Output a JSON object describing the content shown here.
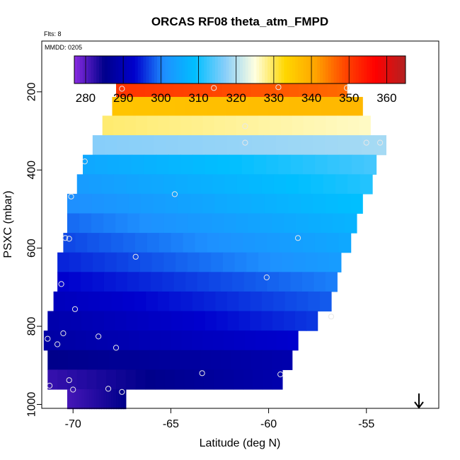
{
  "chart_data": {
    "type": "heatmap",
    "title": "ORCAS RF08 theta_atm_FMPD",
    "annotations": {
      "flights": "Flts: 8",
      "date": "MMDD: 0205"
    },
    "xlabel": "Latitude (deg N)",
    "ylabel": "PSXC (mbar)",
    "xlim": [
      -71.6,
      -51.3
    ],
    "ylim": [
      1010,
      70
    ],
    "x_ticks": [
      -70,
      -65,
      -60,
      -55
    ],
    "y_ticks": [
      200,
      400,
      600,
      800,
      1000
    ],
    "colorbar": {
      "range": [
        277,
        365
      ],
      "ticks": [
        280,
        290,
        300,
        310,
        320,
        330,
        340,
        350,
        360
      ],
      "colors": [
        "#8a2be2",
        "#00008b",
        "#0000cd",
        "#1e90ff",
        "#00bfff",
        "#87cefa",
        "#ffffe0",
        "#ffd700",
        "#ffa500",
        "#ff4500",
        "#ff0000",
        "#b22222"
      ]
    },
    "flight_direction_arrow": "down",
    "rows": [
      {
        "p": 188,
        "lat_min": -67.8,
        "lat_max": -56.0,
        "value_min": 351,
        "value_max": 346
      },
      {
        "p": 238,
        "lat_min": -68.0,
        "lat_max": -55.2,
        "value_min": 336,
        "value_max": 338
      },
      {
        "p": 286,
        "lat_min": -68.5,
        "lat_max": -54.8,
        "value_min": 329,
        "value_max": 326
      },
      {
        "p": 336,
        "lat_min": -69.0,
        "lat_max": -54.0,
        "value_min": 317,
        "value_max": 319
      },
      {
        "p": 386,
        "lat_min": -69.5,
        "lat_max": -54.5,
        "value_min": 305,
        "value_max": 313
      },
      {
        "p": 436,
        "lat_min": -69.8,
        "lat_max": -54.7,
        "value_min": 303,
        "value_max": 311
      },
      {
        "p": 486,
        "lat_min": -70.3,
        "lat_max": -55.2,
        "value_min": 301,
        "value_max": 309
      },
      {
        "p": 536,
        "lat_min": -70.3,
        "lat_max": -55.5,
        "value_min": 299,
        "value_max": 307
      },
      {
        "p": 586,
        "lat_min": -70.5,
        "lat_max": -55.8,
        "value_min": 297,
        "value_max": 305
      },
      {
        "p": 636,
        "lat_min": -70.8,
        "lat_max": -56.3,
        "value_min": 295,
        "value_max": 303
      },
      {
        "p": 686,
        "lat_min": -70.8,
        "lat_max": -56.5,
        "value_min": 293,
        "value_max": 300
      },
      {
        "p": 736,
        "lat_min": -71.0,
        "lat_max": -56.8,
        "value_min": 291,
        "value_max": 298
      },
      {
        "p": 786,
        "lat_min": -71.3,
        "lat_max": -57.5,
        "value_min": 289,
        "value_max": 296
      },
      {
        "p": 836,
        "lat_min": -71.5,
        "lat_max": -58.5,
        "value_min": 288,
        "value_max": 293
      },
      {
        "p": 886,
        "lat_min": -71.3,
        "lat_max": -58.8,
        "value_min": 285,
        "value_max": 289
      },
      {
        "p": 936,
        "lat_min": -71.3,
        "lat_max": -59.3,
        "value_min": 282,
        "value_max": 289
      },
      {
        "p": 986,
        "lat_min": -70.3,
        "lat_max": -67.3,
        "value_min": 281,
        "value_max": 285
      }
    ],
    "points": [
      {
        "lat": -67.5,
        "p": 192
      },
      {
        "lat": -62.8,
        "p": 190
      },
      {
        "lat": -59.5,
        "p": 188
      },
      {
        "lat": -56.0,
        "p": 190
      },
      {
        "lat": -61.2,
        "p": 288
      },
      {
        "lat": -61.2,
        "p": 330
      },
      {
        "lat": -55.0,
        "p": 330
      },
      {
        "lat": -54.3,
        "p": 330
      },
      {
        "lat": -69.4,
        "p": 378
      },
      {
        "lat": -64.8,
        "p": 462
      },
      {
        "lat": -70.1,
        "p": 468
      },
      {
        "lat": -70.4,
        "p": 574
      },
      {
        "lat": -70.2,
        "p": 576
      },
      {
        "lat": -58.5,
        "p": 574
      },
      {
        "lat": -66.8,
        "p": 622
      },
      {
        "lat": -60.1,
        "p": 675
      },
      {
        "lat": -70.6,
        "p": 692
      },
      {
        "lat": -69.9,
        "p": 756
      },
      {
        "lat": -56.8,
        "p": 775
      },
      {
        "lat": -70.5,
        "p": 818
      },
      {
        "lat": -68.7,
        "p": 826
      },
      {
        "lat": -71.3,
        "p": 832
      },
      {
        "lat": -70.8,
        "p": 846
      },
      {
        "lat": -67.8,
        "p": 855
      },
      {
        "lat": -63.4,
        "p": 920
      },
      {
        "lat": -59.4,
        "p": 923
      },
      {
        "lat": -70.2,
        "p": 938
      },
      {
        "lat": -71.2,
        "p": 952
      },
      {
        "lat": -70.0,
        "p": 962
      },
      {
        "lat": -68.2,
        "p": 960
      },
      {
        "lat": -67.5,
        "p": 968
      }
    ]
  }
}
